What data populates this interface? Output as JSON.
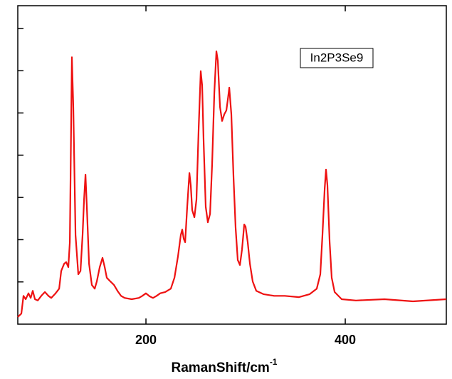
{
  "chart_data": {
    "type": "line",
    "xlabel": {
      "text": "RamanShift/cm",
      "superscript": "-1"
    },
    "xlim": [
      71.4,
      501.4
    ],
    "xticks": [
      200,
      400
    ],
    "ylim": [
      0,
      7.54
    ],
    "ytick_marks": [
      1,
      2,
      3,
      4,
      5,
      6,
      7
    ],
    "legend": "top-right",
    "series": [
      {
        "name": "In2P3Se9",
        "color": "#ee1111",
        "x": [
          71.4,
          75,
          77.1,
          79.3,
          82.1,
          84.3,
          86.4,
          88.6,
          91.4,
          95,
          98.6,
          102.1,
          105,
          109.3,
          112.9,
          115,
          117.9,
          120,
          122.1,
          123.6,
          125.7,
          127.1,
          129.3,
          132.1,
          134.3,
          136.4,
          137.9,
          139.3,
          140.7,
          142.9,
          145.7,
          148.6,
          150.7,
          153.6,
          156.4,
          158.6,
          160.7,
          164.3,
          167.9,
          171.4,
          175,
          178.6,
          185.7,
          192.9,
          196.4,
          200,
          203.6,
          207.1,
          210.7,
          214.3,
          219.3,
          225,
          228.6,
          232.1,
          235,
          236.4,
          237.9,
          239.3,
          241.4,
          243.6,
          245,
          246.4,
          248.6,
          250.7,
          252.9,
          255,
          256.4,
          257.9,
          260,
          262.1,
          264.3,
          266.4,
          268.6,
          270.7,
          272.1,
          274.3,
          276.4,
          278.6,
          280.7,
          282.1,
          283.6,
          285.7,
          287.9,
          290,
          292.1,
          294.3,
          296.4,
          298.6,
          300,
          302.1,
          304.3,
          307.1,
          310.7,
          317.9,
          328.6,
          339.3,
          353.6,
          364.3,
          371.4,
          375,
          377.1,
          379.3,
          380.7,
          382.1,
          384.3,
          386.4,
          389.3,
          396.4,
          410.7,
          439.3,
          467.9,
          501.4
        ],
        "values": [
          0.17,
          0.25,
          0.67,
          0.59,
          0.73,
          0.62,
          0.79,
          0.59,
          0.56,
          0.67,
          0.76,
          0.67,
          0.62,
          0.73,
          0.84,
          1.26,
          1.43,
          1.47,
          1.35,
          1.94,
          6.32,
          5.14,
          2.11,
          1.18,
          1.26,
          2.11,
          2.95,
          3.54,
          2.78,
          1.43,
          0.93,
          0.84,
          1.01,
          1.35,
          1.57,
          1.35,
          1.1,
          1.01,
          0.93,
          0.79,
          0.67,
          0.62,
          0.59,
          0.62,
          0.67,
          0.73,
          0.66,
          0.62,
          0.67,
          0.73,
          0.76,
          0.84,
          1.1,
          1.6,
          2.11,
          2.24,
          2.02,
          1.94,
          2.78,
          3.58,
          3.29,
          2.7,
          2.53,
          2.95,
          4.64,
          5.99,
          5.65,
          4.3,
          2.78,
          2.41,
          2.61,
          3.79,
          5.48,
          6.46,
          6.24,
          5.14,
          4.81,
          4.97,
          5.06,
          5.31,
          5.6,
          4.97,
          3.46,
          2.28,
          1.52,
          1.4,
          1.77,
          2.36,
          2.31,
          1.94,
          1.43,
          1.01,
          0.79,
          0.71,
          0.67,
          0.67,
          0.64,
          0.71,
          0.84,
          1.18,
          2.11,
          3.2,
          3.66,
          3.29,
          1.94,
          1.1,
          0.76,
          0.59,
          0.56,
          0.59,
          0.54,
          0.59
        ]
      }
    ]
  }
}
